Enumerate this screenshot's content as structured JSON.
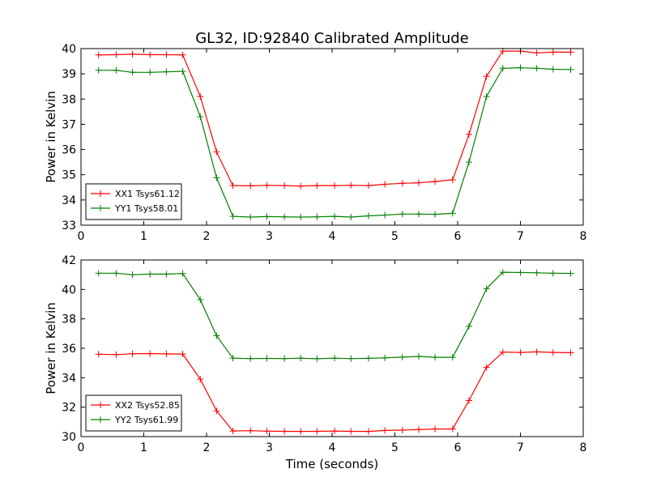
{
  "chart_data": [
    {
      "type": "line",
      "title": "GL32, ID:92840 Calibrated Amplitude",
      "xlabel": "",
      "ylabel": "Power in Kelvin",
      "xlim": [
        0,
        8
      ],
      "ylim": [
        33,
        40
      ],
      "xticks": [
        "0",
        "1",
        "2",
        "3",
        "4",
        "5",
        "6",
        "7",
        "8"
      ],
      "yticks": [
        "33",
        "34",
        "35",
        "36",
        "37",
        "38",
        "39",
        "40"
      ],
      "grid": false,
      "legend_position": "lower-left",
      "x": [
        0.28,
        0.56,
        0.82,
        1.1,
        1.36,
        1.62,
        1.9,
        2.16,
        2.42,
        2.7,
        2.96,
        3.24,
        3.5,
        3.76,
        4.04,
        4.3,
        4.58,
        4.84,
        5.12,
        5.38,
        5.64,
        5.92,
        6.18,
        6.46,
        6.72,
        7.0,
        7.26,
        7.52,
        7.8
      ],
      "series": [
        {
          "name": "XX1 Tsys61.12",
          "color": "#ff0000",
          "values": [
            39.75,
            39.76,
            39.78,
            39.76,
            39.76,
            39.75,
            38.1,
            35.9,
            34.57,
            34.56,
            34.58,
            34.57,
            34.55,
            34.57,
            34.57,
            34.58,
            34.57,
            34.62,
            34.66,
            34.68,
            34.73,
            34.8,
            36.6,
            38.9,
            39.9,
            39.9,
            39.83,
            39.86,
            39.86
          ]
        },
        {
          "name": "YY1 Tsys58.01",
          "color": "#008000",
          "values": [
            39.14,
            39.14,
            39.06,
            39.06,
            39.08,
            39.1,
            37.3,
            34.88,
            33.35,
            33.32,
            33.34,
            33.33,
            33.32,
            33.33,
            33.35,
            33.32,
            33.37,
            33.4,
            33.44,
            33.44,
            33.43,
            33.47,
            35.5,
            38.1,
            39.22,
            39.24,
            39.22,
            39.18,
            39.17
          ]
        }
      ]
    },
    {
      "type": "line",
      "title": "",
      "xlabel": "Time (seconds)",
      "ylabel": "Power in Kelvin",
      "xlim": [
        0,
        8
      ],
      "ylim": [
        30,
        42
      ],
      "xticks": [
        "0",
        "1",
        "2",
        "3",
        "4",
        "5",
        "6",
        "7",
        "8"
      ],
      "yticks": [
        "30",
        "32",
        "34",
        "36",
        "38",
        "40",
        "42"
      ],
      "grid": false,
      "legend_position": "lower-left",
      "x": [
        0.28,
        0.56,
        0.82,
        1.1,
        1.36,
        1.62,
        1.9,
        2.16,
        2.42,
        2.7,
        2.96,
        3.24,
        3.5,
        3.76,
        4.04,
        4.3,
        4.58,
        4.84,
        5.12,
        5.38,
        5.64,
        5.92,
        6.18,
        6.46,
        6.72,
        7.0,
        7.26,
        7.52,
        7.8
      ],
      "series": [
        {
          "name": "XX2 Tsys52.85",
          "color": "#ff0000",
          "values": [
            35.6,
            35.57,
            35.63,
            35.64,
            35.62,
            35.61,
            33.9,
            31.75,
            30.38,
            30.4,
            30.37,
            30.36,
            30.35,
            30.36,
            30.38,
            30.36,
            30.35,
            30.42,
            30.44,
            30.48,
            30.52,
            30.52,
            32.45,
            34.7,
            35.74,
            35.72,
            35.76,
            35.72,
            35.7
          ]
        },
        {
          "name": "YY2 Tsys61.99",
          "color": "#008000",
          "values": [
            41.1,
            41.1,
            41.0,
            41.04,
            41.04,
            41.08,
            39.3,
            36.85,
            35.33,
            35.3,
            35.31,
            35.3,
            35.33,
            35.29,
            35.33,
            35.3,
            35.32,
            35.35,
            35.4,
            35.45,
            35.39,
            35.39,
            37.5,
            40.05,
            41.17,
            41.15,
            41.13,
            41.1,
            41.09
          ]
        }
      ]
    }
  ]
}
